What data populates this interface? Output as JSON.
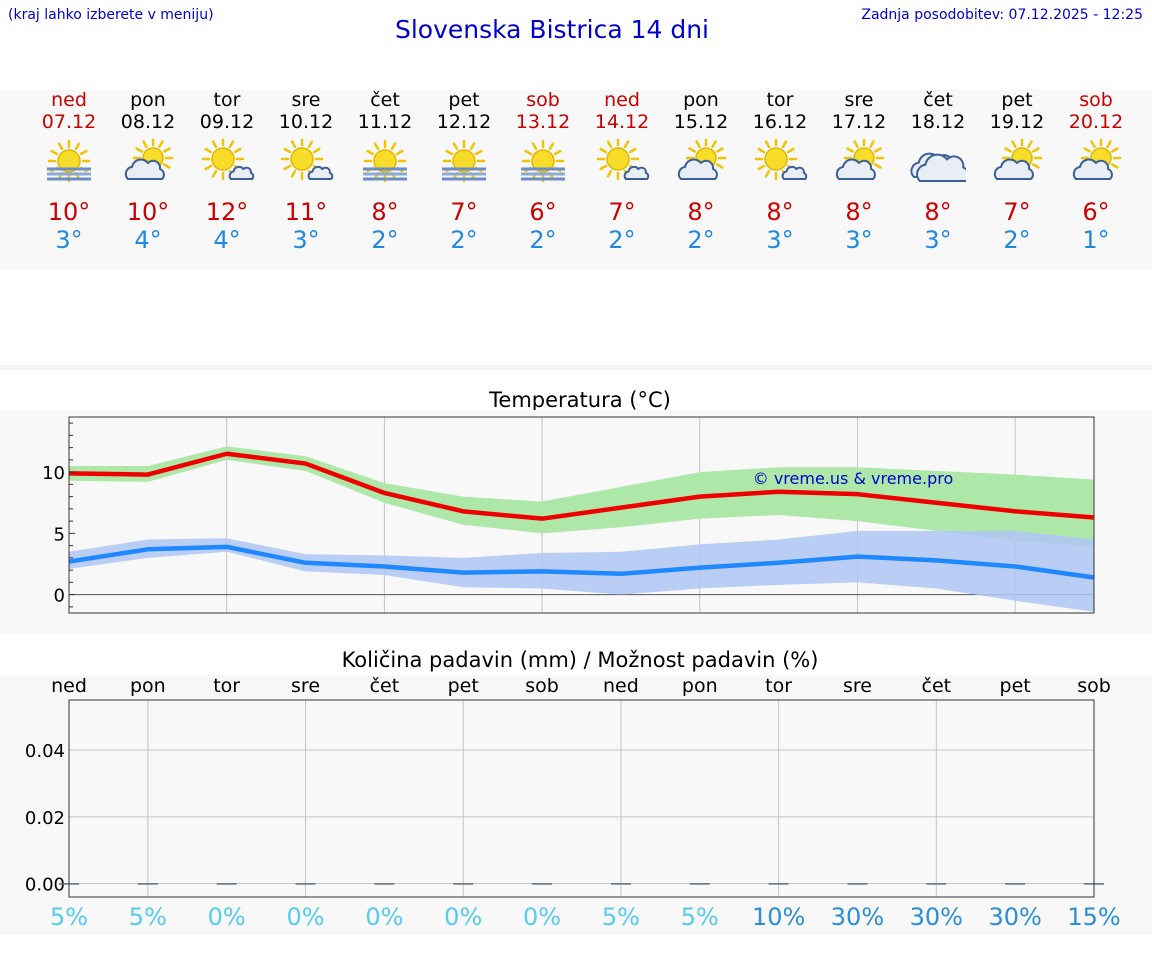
{
  "header": {
    "left_note": "(kraj lahko izberete v meniju)",
    "title": "Slovenska Bistrica 14 dni",
    "updated": "Zadnja posodobitev: 07.12.2025 - 12:25"
  },
  "days": [
    {
      "name": "ned",
      "date": "07.12",
      "weekend": true,
      "icon": "sun-fog-icon",
      "tmax": "10°",
      "tmin": "3°"
    },
    {
      "name": "pon",
      "date": "08.12",
      "weekend": false,
      "icon": "sun-behind-cloud-icon",
      "tmax": "10°",
      "tmin": "4°"
    },
    {
      "name": "tor",
      "date": "09.12",
      "weekend": false,
      "icon": "sun-small-cloud-icon",
      "tmax": "12°",
      "tmin": "4°"
    },
    {
      "name": "sre",
      "date": "10.12",
      "weekend": false,
      "icon": "sun-small-cloud-icon",
      "tmax": "11°",
      "tmin": "3°"
    },
    {
      "name": "čet",
      "date": "11.12",
      "weekend": false,
      "icon": "sun-fog-icon",
      "tmax": "8°",
      "tmin": "2°"
    },
    {
      "name": "pet",
      "date": "12.12",
      "weekend": false,
      "icon": "sun-fog-icon",
      "tmax": "7°",
      "tmin": "2°"
    },
    {
      "name": "sob",
      "date": "13.12",
      "weekend": true,
      "icon": "sun-fog-icon",
      "tmax": "6°",
      "tmin": "2°"
    },
    {
      "name": "ned",
      "date": "14.12",
      "weekend": true,
      "icon": "sun-small-cloud-icon",
      "tmax": "7°",
      "tmin": "2°"
    },
    {
      "name": "pon",
      "date": "15.12",
      "weekend": false,
      "icon": "sun-behind-cloud-icon",
      "tmax": "8°",
      "tmin": "2°"
    },
    {
      "name": "tor",
      "date": "16.12",
      "weekend": false,
      "icon": "sun-small-cloud-icon",
      "tmax": "8°",
      "tmin": "3°"
    },
    {
      "name": "sre",
      "date": "17.12",
      "weekend": false,
      "icon": "sun-behind-cloud-icon",
      "tmax": "8°",
      "tmin": "3°"
    },
    {
      "name": "čet",
      "date": "18.12",
      "weekend": false,
      "icon": "cloud-icon",
      "tmax": "8°",
      "tmin": "3°"
    },
    {
      "name": "pet",
      "date": "19.12",
      "weekend": false,
      "icon": "sun-behind-cloud-icon",
      "tmax": "7°",
      "tmin": "2°"
    },
    {
      "name": "sob",
      "date": "20.12",
      "weekend": true,
      "icon": "sun-behind-cloud-icon",
      "tmax": "6°",
      "tmin": "1°"
    }
  ],
  "colors": {
    "max_line": "#ee0000",
    "max_band": "#aee8a8",
    "min_line": "#1e88ff",
    "min_band": "#afc6f4",
    "weekend": "#cc0000",
    "pct_low": "#55ccee",
    "pct_high": "#2a8fd8"
  },
  "chart_data": [
    {
      "type": "line",
      "title": "Temperatura (°C)",
      "ylim": [
        -1.5,
        14.5
      ],
      "yticks": [
        0,
        5,
        10
      ],
      "x": [
        0,
        0.5,
        1,
        1.5,
        2,
        2.5,
        3,
        3.5,
        4,
        4.5,
        5,
        5.5,
        6,
        6.5
      ],
      "watermark": "© vreme.us & vreme.pro",
      "series": [
        {
          "name": "max",
          "values": [
            9.9,
            9.8,
            11.5,
            10.7,
            8.3,
            6.8,
            6.2,
            7.1,
            8.0,
            8.4,
            8.2,
            7.5,
            6.8,
            6.3
          ],
          "band_low": [
            9.3,
            9.2,
            11.0,
            10.1,
            7.5,
            5.7,
            5.0,
            5.5,
            6.2,
            6.5,
            6.0,
            5.2,
            4.4,
            3.9
          ],
          "band_high": [
            10.5,
            10.5,
            12.1,
            11.3,
            9.1,
            8.0,
            7.6,
            8.8,
            10.0,
            10.4,
            10.4,
            10.1,
            9.8,
            9.4
          ]
        },
        {
          "name": "min",
          "values": [
            2.7,
            3.7,
            3.9,
            2.6,
            2.3,
            1.8,
            1.9,
            1.7,
            2.2,
            2.6,
            3.1,
            2.8,
            2.3,
            1.4
          ],
          "band_low": [
            2.1,
            3.0,
            3.5,
            1.9,
            1.6,
            0.6,
            0.5,
            0.0,
            0.5,
            0.8,
            1.0,
            0.5,
            -0.5,
            -1.4
          ],
          "band_high": [
            3.5,
            4.5,
            4.6,
            3.3,
            3.2,
            3.0,
            3.4,
            3.5,
            4.1,
            4.5,
            5.2,
            5.2,
            5.2,
            4.5
          ]
        }
      ]
    },
    {
      "type": "bar",
      "title": "Količina padavin (mm) / Možnost padavin (%)",
      "categories": [
        "ned",
        "pon",
        "tor",
        "sre",
        "čet",
        "pet",
        "sob",
        "ned",
        "pon",
        "tor",
        "sre",
        "čet",
        "pet",
        "sob"
      ],
      "values": [
        0,
        0,
        0,
        0,
        0,
        0,
        0,
        0,
        0,
        0,
        0,
        0,
        0,
        0
      ],
      "ylim": [
        -0.004,
        0.055
      ],
      "yticks": [
        "0.00",
        "0.02",
        "0.04"
      ],
      "probability": [
        "5%",
        "5%",
        "0%",
        "0%",
        "0%",
        "0%",
        "0%",
        "5%",
        "5%",
        "10%",
        "30%",
        "30%",
        "30%",
        "15%"
      ]
    }
  ]
}
